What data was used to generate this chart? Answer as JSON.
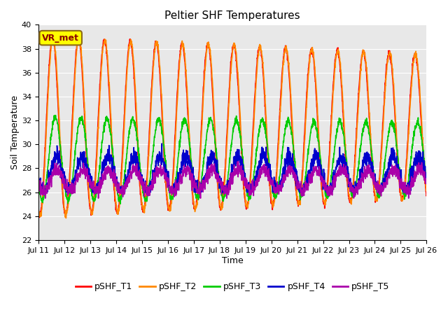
{
  "title": "Peltier SHF Temperatures",
  "xlabel": "Time",
  "ylabel": "Soil Temperature",
  "ylim": [
    22,
    40
  ],
  "annotation": "VR_met",
  "annotation_bg": "#ffff00",
  "annotation_border": "#8B6914",
  "background_color": "#e8e8e8",
  "series": {
    "pSHF_T1": {
      "color": "#ff0000",
      "linewidth": 1.2
    },
    "pSHF_T2": {
      "color": "#ff8800",
      "linewidth": 1.2
    },
    "pSHF_T3": {
      "color": "#00cc00",
      "linewidth": 1.2
    },
    "pSHF_T4": {
      "color": "#0000cc",
      "linewidth": 1.2
    },
    "pSHF_T5": {
      "color": "#aa00aa",
      "linewidth": 1.2
    }
  },
  "xtick_labels": [
    "Jul 11",
    "Jul 12",
    "Jul 13",
    "Jul 14",
    "Jul 15",
    "Jul 16",
    "Jul 17",
    "Jul 18",
    "Jul 19",
    "Jul 20",
    "Jul 21",
    "Jul 22",
    "Jul 23",
    "Jul 24",
    "Jul 25",
    "Jul 26"
  ],
  "yticks": [
    22,
    24,
    26,
    28,
    30,
    32,
    34,
    36,
    38,
    40
  ],
  "title_fontsize": 11,
  "axis_label_fontsize": 9,
  "tick_fontsize": 8,
  "legend_fontsize": 9
}
